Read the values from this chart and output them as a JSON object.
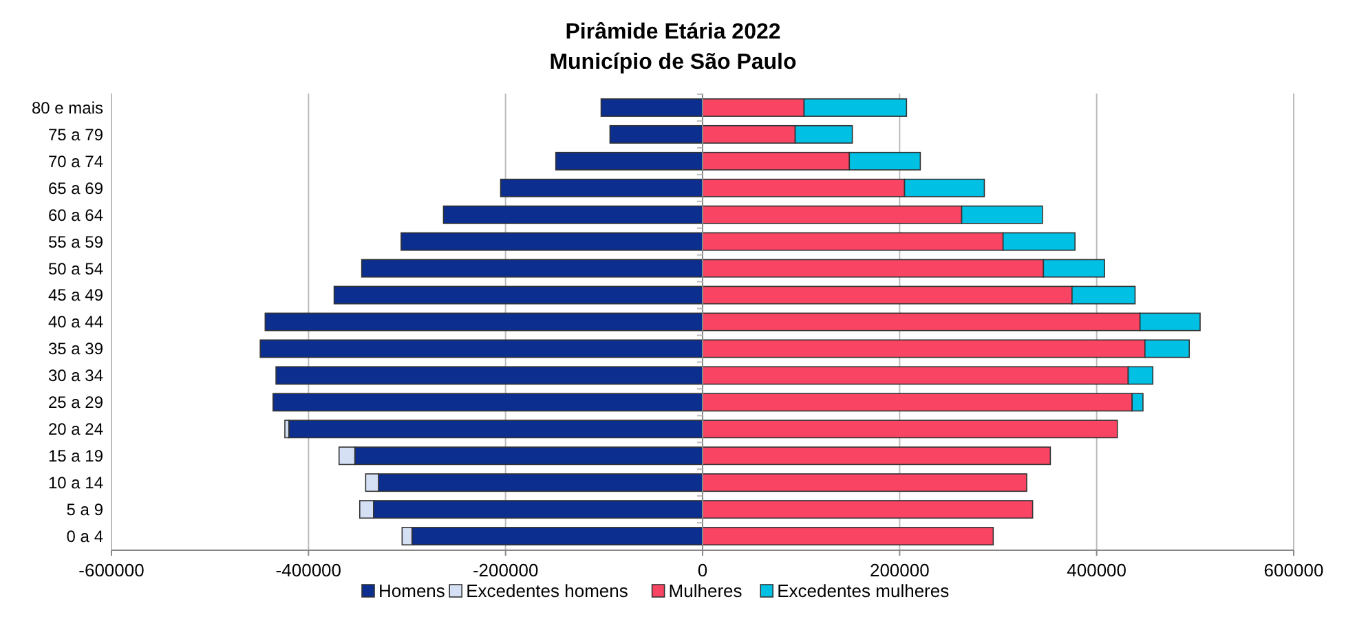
{
  "chart_data": {
    "type": "bar",
    "orientation": "horizontal",
    "stacked": true,
    "title": "Pirâmide Etária 2022\nMunicípio de São Paulo",
    "categories": [
      "80 e mais",
      "75 a 79",
      "70 a 74",
      "65 a 69",
      "60 a 64",
      "55 a 59",
      "50 a 54",
      "45 a 49",
      "40 a 44",
      "35 a 39",
      "30 a 34",
      "25 a 29",
      "20 a 24",
      "15 a 19",
      "10 a 14",
      "5 a 9",
      "0 a 4"
    ],
    "series": [
      {
        "name": "Homens",
        "color": "#0b2e8f",
        "values": [
          -103000,
          -94000,
          -149000,
          -205000,
          -263000,
          -306000,
          -346000,
          -374000,
          -444000,
          -449000,
          -433000,
          -436000,
          -420000,
          -353000,
          -329000,
          -334000,
          -295000
        ]
      },
      {
        "name": "Excedentes homens",
        "color": "#d6e0f5",
        "values": [
          0,
          0,
          0,
          0,
          0,
          0,
          0,
          0,
          0,
          0,
          0,
          0,
          -4000,
          -16000,
          -13000,
          -14000,
          -10000
        ]
      },
      {
        "name": "Mulheres",
        "color": "#f94563",
        "values": [
          103000,
          94000,
          149000,
          205000,
          263000,
          305000,
          346000,
          375000,
          444000,
          449000,
          432000,
          436000,
          421000,
          353000,
          329000,
          335000,
          295000
        ]
      },
      {
        "name": "Excedentes mulheres",
        "color": "#00c0e4",
        "values": [
          104000,
          58000,
          72000,
          81000,
          82000,
          73000,
          62000,
          64000,
          61000,
          45000,
          25000,
          11000,
          0,
          0,
          0,
          0,
          0
        ]
      }
    ],
    "xlim": [
      -600000,
      600000
    ],
    "xticks": [
      -600000,
      -400000,
      -200000,
      0,
      200000,
      400000,
      600000
    ],
    "grid": "x",
    "legend": "bottom"
  }
}
